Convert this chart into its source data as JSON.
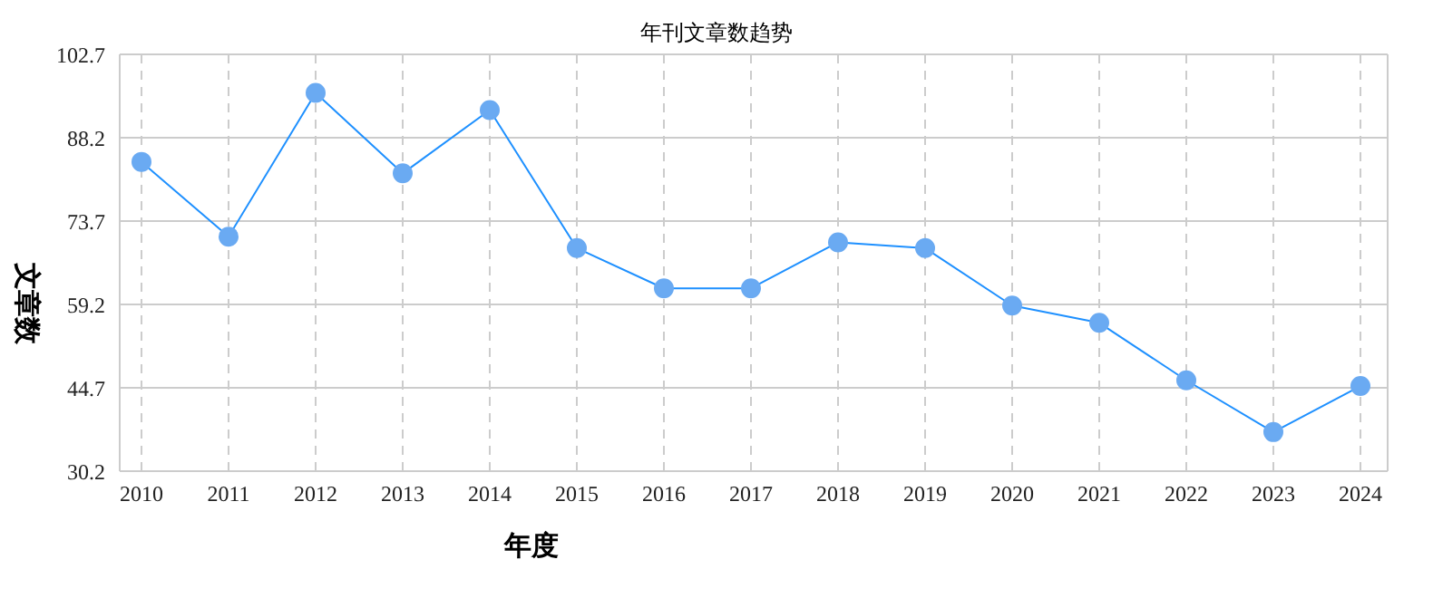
{
  "chart_data": {
    "type": "line",
    "title": "年刊文章数趋势",
    "xlabel": "年度",
    "ylabel": "文章数",
    "categories": [
      "2010",
      "2011",
      "2012",
      "2013",
      "2014",
      "2015",
      "2016",
      "2017",
      "2018",
      "2019",
      "2020",
      "2021",
      "2022",
      "2023",
      "2024"
    ],
    "series": [
      {
        "color": "#1e90ff",
        "values": [
          84,
          71,
          96,
          82,
          93,
          69,
          62,
          62,
          70,
          69,
          59,
          56,
          46,
          37,
          45
        ]
      }
    ],
    "ylim": [
      30.2,
      102.7
    ],
    "yticks": [
      30.2,
      44.7,
      59.2,
      73.7,
      88.2,
      102.7
    ],
    "grid": true,
    "marker": "circle",
    "line_style": "solid"
  }
}
